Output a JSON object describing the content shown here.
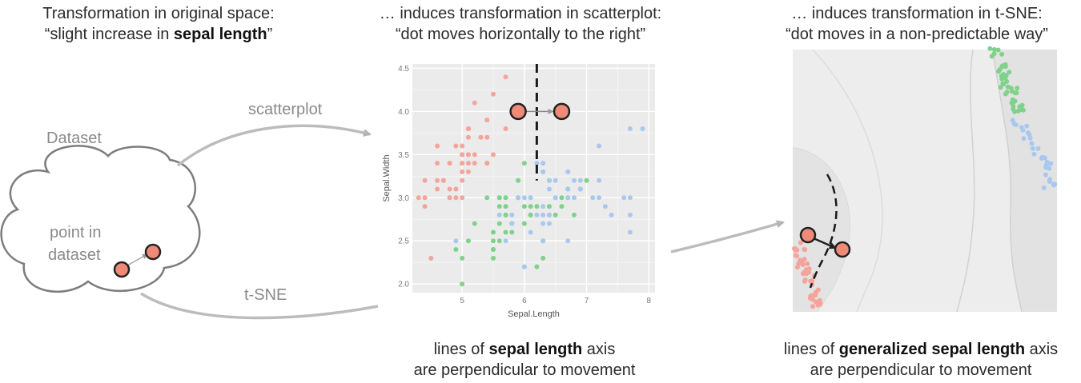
{
  "captions": {
    "left": {
      "line1": "Transformation in original space:",
      "line2_pre": "“slight increase in ",
      "line2_bold": "sepal length",
      "line2_post": "”"
    },
    "middle": {
      "line1": "… induces transformation in scatterplot:",
      "line2": "“dot moves horizontally to the right”"
    },
    "right": {
      "line1": "… induces transformation in t-SNE:",
      "line2": "“dot moves in a non-predictable way”"
    },
    "bottom_middle": {
      "pre": "lines of ",
      "bold": "sepal length",
      "post": " axis",
      "line2": "are perpendicular to movement"
    },
    "bottom_right": {
      "pre": "lines of ",
      "bold": "generalized sepal length",
      "post": " axis",
      "line2": "are perpendicular to movement"
    }
  },
  "cloud": {
    "title": "Dataset",
    "point_label_1": "point in",
    "point_label_2": "dataset"
  },
  "arrows": {
    "scatterplot": "scatterplot",
    "tsne": "t-SNE"
  },
  "colors": {
    "setosa": "#f4a49a",
    "versicolor": "#7fd28a",
    "virginica": "#a9c8ef",
    "marker": "#f08a78",
    "panel": "#ececec"
  },
  "chart_data": {
    "type": "scatter",
    "xlabel": "Sepal.Length",
    "ylabel": "Sepal.Width",
    "xlim": [
      4.2,
      8.1
    ],
    "ylim": [
      1.9,
      4.55
    ],
    "xticks": [
      5,
      6,
      7,
      8
    ],
    "yticks": [
      2.0,
      2.5,
      3.0,
      3.5,
      4.0,
      4.5
    ],
    "series": [
      {
        "values": [
          [
            5.1,
            3.5
          ],
          [
            4.9,
            3.0
          ],
          [
            4.7,
            3.2
          ],
          [
            4.6,
            3.1
          ],
          [
            5.0,
            3.6
          ],
          [
            5.4,
            3.9
          ],
          [
            4.6,
            3.4
          ],
          [
            5.0,
            3.4
          ],
          [
            4.4,
            2.9
          ],
          [
            4.9,
            3.1
          ],
          [
            5.4,
            3.7
          ],
          [
            4.8,
            3.4
          ],
          [
            4.8,
            3.0
          ],
          [
            4.3,
            3.0
          ],
          [
            5.8,
            4.0
          ],
          [
            5.7,
            4.4
          ],
          [
            5.4,
            3.9
          ],
          [
            5.1,
            3.5
          ],
          [
            5.7,
            3.8
          ],
          [
            5.1,
            3.8
          ],
          [
            5.4,
            3.4
          ],
          [
            5.1,
            3.7
          ],
          [
            4.6,
            3.6
          ],
          [
            5.1,
            3.3
          ],
          [
            4.8,
            3.4
          ],
          [
            5.0,
            3.0
          ],
          [
            5.0,
            3.4
          ],
          [
            5.2,
            3.5
          ],
          [
            5.2,
            3.4
          ],
          [
            4.7,
            3.2
          ],
          [
            4.8,
            3.1
          ],
          [
            5.4,
            3.4
          ],
          [
            5.2,
            4.1
          ],
          [
            5.5,
            4.2
          ],
          [
            4.9,
            3.1
          ],
          [
            5.0,
            3.2
          ],
          [
            5.5,
            3.5
          ],
          [
            4.9,
            3.6
          ],
          [
            4.4,
            3.0
          ],
          [
            5.1,
            3.4
          ],
          [
            5.0,
            3.5
          ],
          [
            4.5,
            2.3
          ],
          [
            4.4,
            3.2
          ],
          [
            5.0,
            3.5
          ],
          [
            5.1,
            3.8
          ],
          [
            4.8,
            3.0
          ],
          [
            5.1,
            3.8
          ],
          [
            4.6,
            3.2
          ],
          [
            5.3,
            3.7
          ],
          [
            5.0,
            3.3
          ]
        ]
      },
      {
        "values": [
          [
            7.0,
            3.2
          ],
          [
            6.4,
            3.2
          ],
          [
            6.9,
            3.1
          ],
          [
            5.5,
            2.3
          ],
          [
            6.5,
            2.8
          ],
          [
            5.7,
            2.8
          ],
          [
            6.3,
            3.3
          ],
          [
            4.9,
            2.4
          ],
          [
            6.6,
            2.9
          ],
          [
            5.2,
            2.7
          ],
          [
            5.0,
            2.0
          ],
          [
            5.9,
            3.0
          ],
          [
            6.0,
            2.2
          ],
          [
            6.1,
            2.9
          ],
          [
            5.6,
            2.9
          ],
          [
            6.7,
            3.1
          ],
          [
            5.6,
            3.0
          ],
          [
            5.8,
            2.7
          ],
          [
            6.2,
            2.2
          ],
          [
            5.6,
            2.5
          ],
          [
            5.9,
            3.2
          ],
          [
            6.1,
            2.8
          ],
          [
            6.3,
            2.5
          ],
          [
            6.1,
            2.8
          ],
          [
            6.4,
            2.9
          ],
          [
            6.6,
            3.0
          ],
          [
            6.8,
            2.8
          ],
          [
            6.7,
            3.0
          ],
          [
            6.0,
            2.9
          ],
          [
            5.7,
            2.6
          ],
          [
            5.5,
            2.4
          ],
          [
            5.5,
            2.4
          ],
          [
            5.8,
            2.7
          ],
          [
            6.0,
            2.7
          ],
          [
            5.4,
            3.0
          ],
          [
            6.0,
            3.4
          ],
          [
            6.7,
            3.1
          ],
          [
            6.3,
            2.3
          ],
          [
            5.6,
            3.0
          ],
          [
            5.5,
            2.5
          ],
          [
            5.5,
            2.6
          ],
          [
            6.1,
            3.0
          ],
          [
            5.8,
            2.6
          ],
          [
            5.0,
            2.3
          ],
          [
            5.6,
            2.7
          ],
          [
            5.7,
            3.0
          ],
          [
            5.7,
            2.9
          ],
          [
            6.2,
            2.9
          ],
          [
            5.1,
            2.5
          ],
          [
            5.7,
            2.8
          ]
        ]
      },
      {
        "values": [
          [
            6.3,
            3.3
          ],
          [
            5.8,
            2.7
          ],
          [
            7.1,
            3.0
          ],
          [
            6.3,
            2.9
          ],
          [
            6.5,
            3.0
          ],
          [
            7.6,
            3.0
          ],
          [
            4.9,
            2.5
          ],
          [
            7.3,
            2.9
          ],
          [
            6.7,
            2.5
          ],
          [
            7.2,
            3.6
          ],
          [
            6.5,
            3.2
          ],
          [
            6.4,
            2.7
          ],
          [
            6.8,
            3.0
          ],
          [
            5.7,
            2.5
          ],
          [
            5.8,
            2.8
          ],
          [
            6.4,
            3.2
          ],
          [
            6.5,
            3.0
          ],
          [
            7.7,
            3.8
          ],
          [
            7.7,
            2.6
          ],
          [
            6.0,
            2.2
          ],
          [
            6.9,
            3.2
          ],
          [
            5.6,
            2.8
          ],
          [
            7.7,
            2.8
          ],
          [
            6.3,
            2.7
          ],
          [
            6.7,
            3.3
          ],
          [
            7.2,
            3.2
          ],
          [
            6.2,
            2.8
          ],
          [
            6.1,
            3.0
          ],
          [
            6.4,
            2.8
          ],
          [
            7.2,
            3.0
          ],
          [
            7.4,
            2.8
          ],
          [
            7.9,
            3.8
          ],
          [
            6.4,
            2.8
          ],
          [
            6.3,
            2.8
          ],
          [
            6.1,
            2.6
          ],
          [
            7.7,
            3.0
          ],
          [
            6.3,
            3.4
          ],
          [
            6.4,
            3.1
          ],
          [
            6.0,
            3.0
          ],
          [
            6.9,
            3.1
          ],
          [
            6.7,
            3.1
          ],
          [
            6.9,
            3.1
          ],
          [
            6.8,
            3.2
          ],
          [
            6.7,
            3.3
          ],
          [
            6.7,
            3.0
          ],
          [
            6.3,
            2.5
          ],
          [
            6.5,
            3.0
          ],
          [
            6.2,
            3.4
          ],
          [
            5.9,
            3.0
          ]
        ]
      }
    ],
    "dot_from": [
      5.9,
      4.0
    ],
    "dot_to": [
      6.6,
      4.0
    ],
    "dashed_line_x": 6.2
  }
}
